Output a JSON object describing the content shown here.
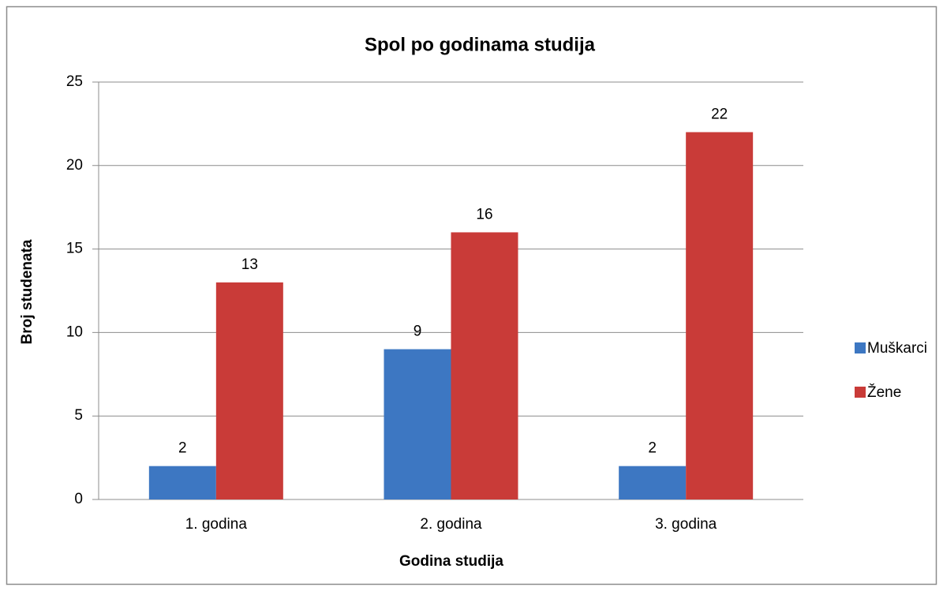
{
  "chart_data": {
    "type": "bar",
    "title": "Spol po godinama studija",
    "x_label": "Godina studija",
    "y_label": "Broj studenata",
    "categories": [
      "1. godina",
      "2. godina",
      "3. godina"
    ],
    "series": [
      {
        "name": "Muškarci",
        "color": "#3d77c2",
        "values": [
          2,
          9,
          2
        ]
      },
      {
        "name": "Žene",
        "color": "#c93b38",
        "values": [
          13,
          16,
          22
        ]
      }
    ],
    "ylim": [
      0,
      25
    ],
    "yticks": [
      0,
      5,
      10,
      15,
      20,
      25
    ],
    "grid": true,
    "legend": "right"
  }
}
